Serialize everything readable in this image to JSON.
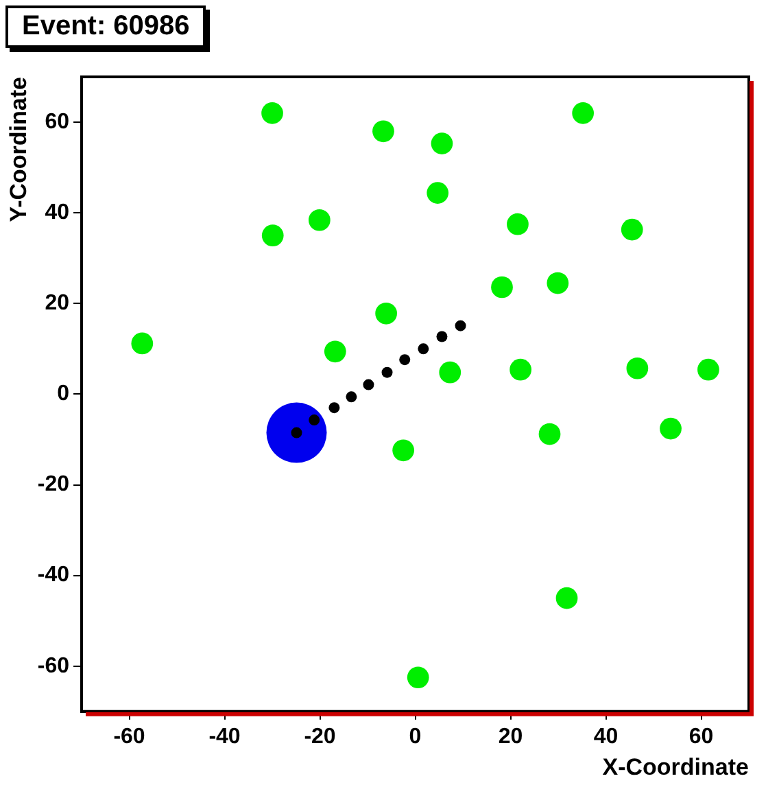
{
  "chart_data": {
    "type": "bubble",
    "title": "Event: 60986",
    "xlabel": "X-Coordinate",
    "ylabel": "Y-Coordinate",
    "xlim": [
      -70,
      70
    ],
    "xticks": [
      -60,
      -40,
      -20,
      0,
      20,
      40,
      60
    ],
    "ylim": [
      -70,
      70
    ],
    "yticks": [
      -60,
      -40,
      -20,
      0,
      20,
      40,
      60
    ],
    "grid": false,
    "marker": "circle",
    "series": [
      {
        "color": "#00ee00",
        "x": [
          -30,
          -6.7,
          5.6,
          35.2,
          4.7,
          -29.9,
          -20.1,
          21.5,
          45.5,
          18.2,
          29.9,
          -6.1,
          -57.3,
          -16.8,
          7.3,
          22.1,
          46.6,
          61.5,
          53.6,
          28.2,
          -2.5,
          31.8,
          0.6
        ],
        "values": [
          62,
          58,
          55.3,
          62,
          44.4,
          35,
          38.4,
          37.5,
          36.3,
          23.6,
          24.5,
          17.8,
          11.2,
          9.4,
          4.8,
          5.4,
          5.7,
          5.4,
          -7.6,
          -8.8,
          -12.4,
          -45,
          -62.5
        ],
        "sizes": [
          0.13,
          0.13,
          0.13,
          0.13,
          0.13,
          0.13,
          0.13,
          0.13,
          0.13,
          0.13,
          0.13,
          0.13,
          0.13,
          0.13,
          0.13,
          0.13,
          0.13,
          0.13,
          0.13,
          0.13,
          0.13,
          0.13,
          0.13
        ]
      },
      {
        "color": "#0000ee",
        "x": [
          -24.9
        ],
        "values": [
          -8.5
        ],
        "sizes": [
          1
        ]
      },
      {
        "color": "#000000",
        "x": [
          -24.9,
          -21.2,
          -17,
          -13.4,
          -9.8,
          -5.9,
          -2.2,
          1.7,
          5.6,
          9.5
        ],
        "values": [
          -8.5,
          -5.7,
          -3,
          -0.6,
          2.1,
          4.8,
          7.6,
          10,
          12.7,
          15.1
        ],
        "sizes": [
          0.033,
          0.033,
          0.033,
          0.033,
          0.033,
          0.033,
          0.033,
          0.033,
          0.033,
          0.033
        ]
      }
    ]
  }
}
